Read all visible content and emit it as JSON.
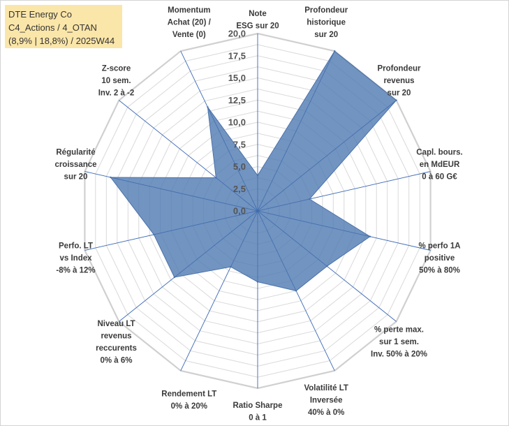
{
  "title_box": {
    "line1": "DTE Energy Co",
    "line2": "C4_Actions / 4_OTAN",
    "line3": "(8,9% | 18,8%) / 2025W44"
  },
  "chart_data": {
    "type": "radar",
    "title": "DTE Energy Co",
    "rmax": 20,
    "ticks": [
      "0,0",
      "2,5",
      "5,0",
      "7,5",
      "10,0",
      "12,5",
      "15,0",
      "17,5",
      "20,0"
    ],
    "tick_values": [
      0,
      2.5,
      5,
      7.5,
      10,
      12.5,
      15,
      17.5,
      20
    ],
    "grid_rings": 16,
    "axes": [
      {
        "label": [
          "Note",
          "ESG sur 20"
        ],
        "value": 4.0
      },
      {
        "label": [
          "Profondeur",
          "historique",
          "sur 20"
        ],
        "value": 20.0
      },
      {
        "label": [
          "Profondeur",
          "revenus",
          "sur 20"
        ],
        "value": 20.0
      },
      {
        "label": [
          "Capl. bours.",
          "en MdEUR",
          "0 à 60 G€"
        ],
        "value": 6.0
      },
      {
        "label": [
          "% perfo 1A",
          "positive",
          "50% à 80%"
        ],
        "value": 13.0
      },
      {
        "label": [
          "% perte max.",
          "sur 1 sem.",
          "Inv. 50% à 20%"
        ],
        "value": 10.0
      },
      {
        "label": [
          "Volatilité LT",
          "Inversée",
          "40% à 0%"
        ],
        "value": 10.0
      },
      {
        "label": [
          "Ratio Sharpe",
          "0 à 1"
        ],
        "value": 8.0
      },
      {
        "label": [
          "Rendement LT",
          "0% à 20%"
        ],
        "value": 7.0
      },
      {
        "label": [
          "Niveau LT",
          "revenus",
          "reccurents",
          "0% à 6%"
        ],
        "value": 12.0
      },
      {
        "label": [
          "Perfo. LT",
          "vs Index",
          "-8% à 12%"
        ],
        "value": 12.0
      },
      {
        "label": [
          "Régularité",
          "croissance",
          "sur 20"
        ],
        "value": 17.0
      },
      {
        "label": [
          "Z-score",
          "10 sem.",
          "Inv. 2 à -2"
        ],
        "value": 6.0
      },
      {
        "label": [
          "Momentum",
          "Achat (20) /",
          "Vente (0)"
        ],
        "value": 13.0
      }
    ],
    "colors": {
      "fill": "#4f79b2",
      "fill_opacity": "0.80",
      "stroke": "#4a72aa",
      "grid": "#d9d9d9",
      "spoke": "#4472c4"
    }
  }
}
